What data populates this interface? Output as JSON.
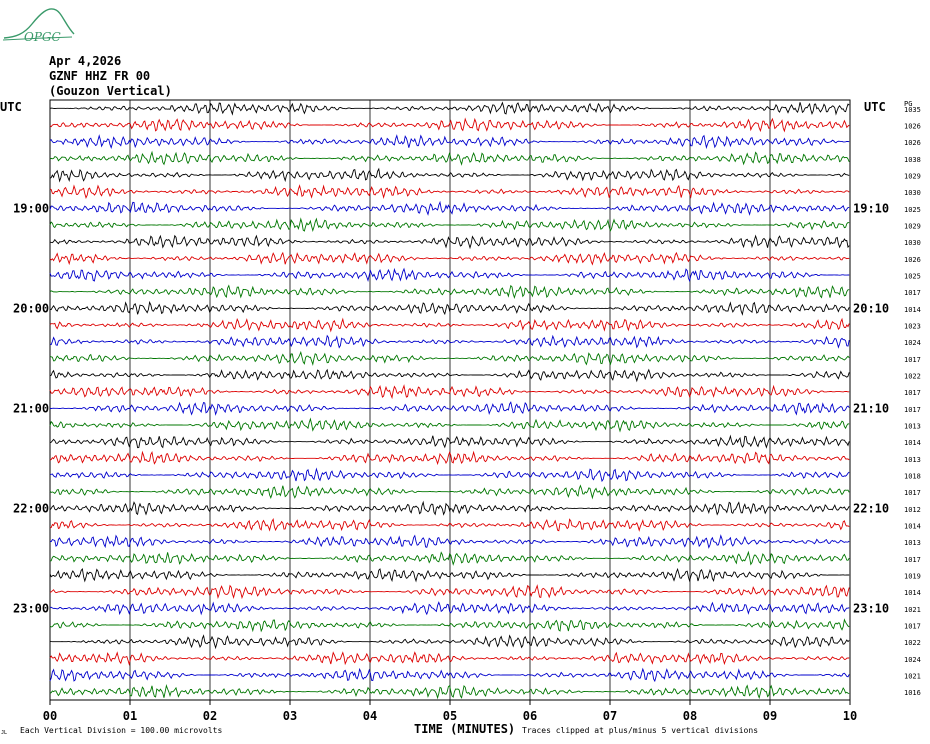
{
  "logo": {
    "text": "OPGC",
    "icon": "ogpc-mountain-logo-icon",
    "color": "#3a9a6a"
  },
  "header": {
    "date": "Apr 4,2026",
    "channel": "GZNF HHZ FR 00",
    "location": "(Gouzon Vertical)"
  },
  "axes": {
    "left_tz": "UTC",
    "right_tz": "UTC",
    "right_col": "PG",
    "xlabel": "TIME (MINUTES)"
  },
  "footer": {
    "scale_note": "Each Vertical Division =  100.00 microvolts",
    "clip_note": "Traces clipped at plus/minus 5 vertical divisions",
    "corner_mark": "JL"
  },
  "chart_data": {
    "type": "line",
    "subtype": "helicorder",
    "x_ticks": [
      "00",
      "01",
      "02",
      "03",
      "04",
      "05",
      "06",
      "07",
      "08",
      "09",
      "10"
    ],
    "xlim": [
      0,
      10
    ],
    "left_time_labels": [
      "19:00",
      "20:00",
      "21:00",
      "22:00",
      "23:00"
    ],
    "right_time_labels": [
      "19:10",
      "20:10",
      "21:10",
      "22:10",
      "23:10"
    ],
    "trace_colors": [
      "#000000",
      "#dd0000",
      "#0000cc",
      "#007700"
    ],
    "pg_values": [
      "1035",
      "1026",
      "1026",
      "1038",
      "1029",
      "1030",
      "1025",
      "1029",
      "1030",
      "1026",
      "1025",
      "1017",
      "1014",
      "1023",
      "1024",
      "1017",
      "1022",
      "1017",
      "1017",
      "1013",
      "1014",
      "1013",
      "1018",
      "1017",
      "1012",
      "1014",
      "1013",
      "1017",
      "1019",
      "1014",
      "1021",
      "1017",
      "1022",
      "1024",
      "1021",
      "1016"
    ],
    "grid": true
  }
}
